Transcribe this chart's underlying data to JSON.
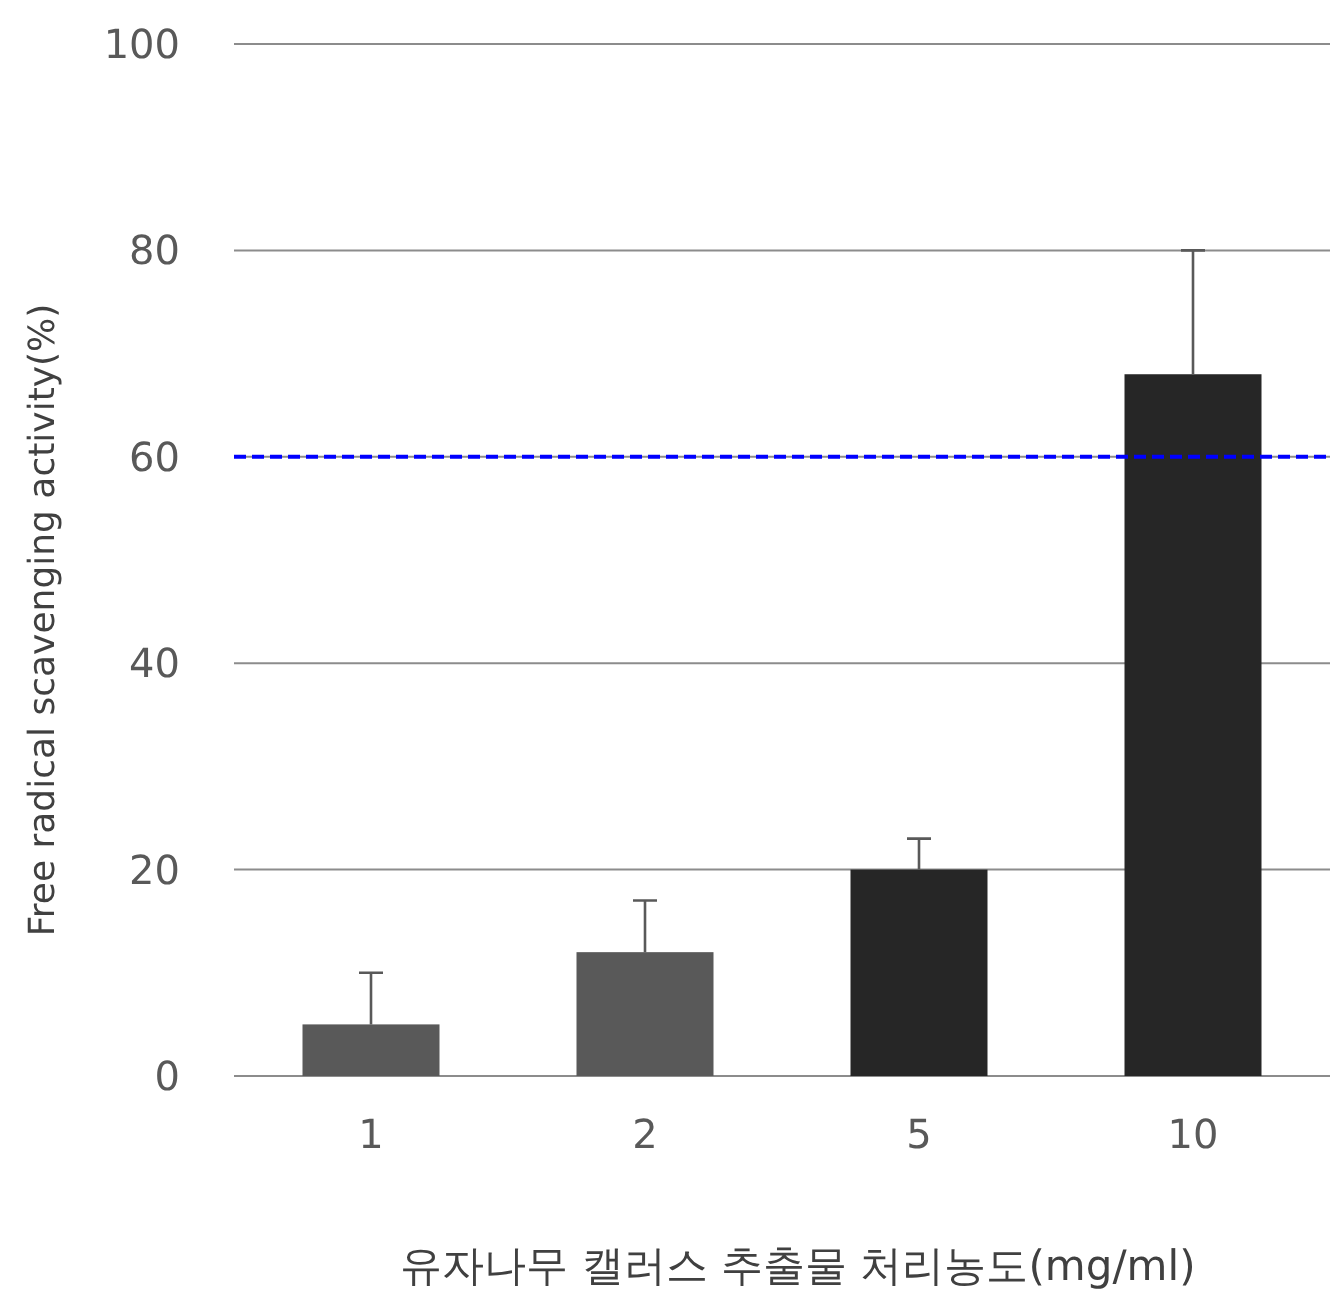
{
  "chart_data": {
    "type": "bar",
    "xlabel": "유자나무 캘러스 추출물 처리농도(mg/ml)",
    "ylabel": "Free radical scavenging activity(%)",
    "categories": [
      "1",
      "2",
      "5",
      "10"
    ],
    "values": [
      5,
      12,
      20,
      68
    ],
    "colors": [
      "#595959",
      "#595959",
      "#262626",
      "#262626"
    ],
    "errors": [
      [
        5,
        10
      ],
      [
        12,
        17
      ],
      [
        20,
        23
      ],
      [
        68,
        80
      ]
    ],
    "ylim": [
      0,
      100
    ],
    "yticks": [
      0,
      20,
      40,
      60,
      80,
      100
    ],
    "grid": "y",
    "ref_lines": [
      {
        "axis": "y",
        "value": 60,
        "color": "#0000ff",
        "line_style": "dashed"
      }
    ]
  }
}
